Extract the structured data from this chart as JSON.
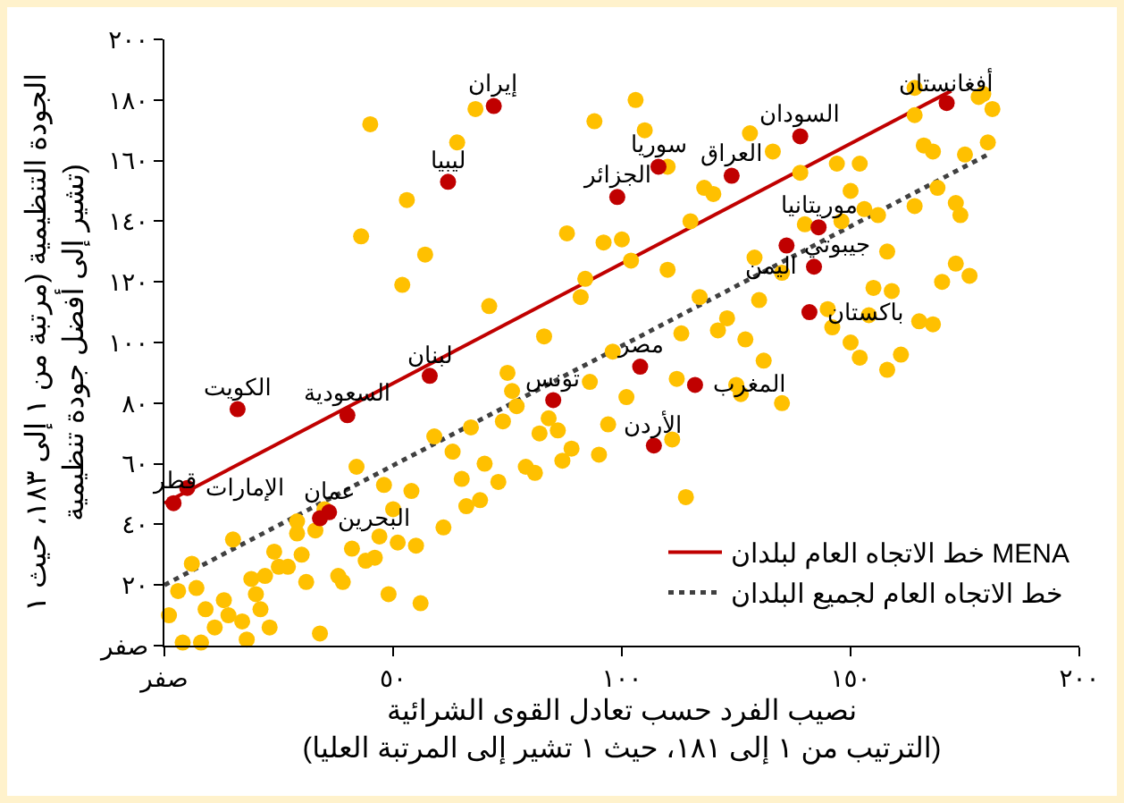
{
  "chart_data": {
    "type": "scatter",
    "xlabel": "نصيب الفرد حسب تعادل القوى الشرائية\n(الترتيب من ١ إلى ١٨١، حيث ١ تشير إلى المرتبة العليا)",
    "ylabel": "الجودة التنظيمية (مرتبة من ١ إلى ١٨٣، حيث ١\nتشير إلى أفضل جودة تنظيمية)",
    "xlim": [
      0,
      200
    ],
    "ylim": [
      0,
      200
    ],
    "xticks": [
      {
        "value": 0,
        "label": "صفر"
      },
      {
        "value": 50,
        "label": "٥٠"
      },
      {
        "value": 100,
        "label": "١٠٠"
      },
      {
        "value": 150,
        "label": "١٥٠"
      },
      {
        "value": 200,
        "label": "٢٠٠"
      }
    ],
    "yticks": [
      {
        "value": 0,
        "label": "صفر"
      },
      {
        "value": 20,
        "label": "٢٠"
      },
      {
        "value": 40,
        "label": "٤٠"
      },
      {
        "value": 60,
        "label": "٦٠"
      },
      {
        "value": 80,
        "label": "٨٠"
      },
      {
        "value": 100,
        "label": "١٠٠"
      },
      {
        "value": 120,
        "label": "١٢٠"
      },
      {
        "value": 140,
        "label": "١٤٠"
      },
      {
        "value": 160,
        "label": "١٦٠"
      },
      {
        "value": 180,
        "label": "١٨٠"
      },
      {
        "value": 200,
        "label": "٢٠٠"
      }
    ],
    "grid": false,
    "legend": "bottom right",
    "marker": "circle",
    "series": [
      {
        "type": "scatter",
        "color": "#ffc000",
        "x": [
          45,
          68,
          64,
          53,
          43,
          57,
          52,
          71,
          83,
          75,
          76,
          77,
          103,
          94,
          105,
          110,
          133,
          128,
          118,
          120,
          139,
          147,
          152,
          150,
          115,
          88,
          96,
          100,
          102,
          110,
          92,
          91,
          129,
          135,
          140,
          148,
          153,
          156,
          164,
          164,
          178,
          179,
          181,
          166,
          168,
          175,
          180,
          169,
          173,
          174,
          164,
          158,
          173,
          176,
          170,
          159,
          155,
          154,
          145,
          165,
          168,
          146,
          150,
          152,
          158,
          161,
          130,
          117,
          113,
          123,
          121,
          127,
          131,
          98,
          93,
          101,
          112,
          125,
          126,
          135,
          84,
          82,
          86,
          97,
          89,
          87,
          95,
          111,
          114,
          79,
          81,
          74,
          59,
          67,
          63,
          70,
          73,
          65,
          66,
          69,
          61,
          54,
          48,
          50,
          42,
          47,
          51,
          55,
          41,
          44,
          46,
          49,
          56,
          34,
          38,
          39,
          31,
          33,
          29,
          29,
          27,
          25,
          24,
          30,
          22,
          19,
          20,
          21,
          23,
          15,
          17,
          13,
          14,
          9,
          11,
          8,
          4,
          6,
          7,
          3,
          1,
          18,
          35
        ],
        "values": [
          172,
          177,
          166,
          147,
          135,
          129,
          119,
          112,
          102,
          90,
          84,
          79,
          180,
          173,
          170,
          158,
          163,
          169,
          151,
          149,
          156,
          159,
          159,
          150,
          140,
          136,
          133,
          134,
          127,
          124,
          121,
          115,
          128,
          123,
          139,
          140,
          144,
          142,
          184,
          175,
          181,
          182,
          177,
          165,
          163,
          162,
          166,
          151,
          146,
          142,
          145,
          130,
          126,
          122,
          120,
          117,
          118,
          109,
          111,
          107,
          106,
          105,
          100,
          95,
          91,
          96,
          114,
          115,
          103,
          108,
          104,
          101,
          94,
          97,
          87,
          82,
          88,
          86,
          83,
          80,
          75,
          70,
          71,
          73,
          65,
          61,
          63,
          68,
          49,
          59,
          57,
          74,
          69,
          72,
          64,
          60,
          54,
          55,
          46,
          48,
          39,
          51,
          53,
          45,
          59,
          36,
          34,
          33,
          32,
          28,
          29,
          17,
          14,
          4,
          23,
          21,
          21,
          38,
          41,
          37,
          26,
          26,
          31,
          30,
          23,
          22,
          17,
          12,
          6,
          35,
          8,
          15,
          10,
          12,
          6,
          1,
          1,
          27,
          19,
          18,
          10,
          2,
          45
        ]
      },
      {
        "type": "scatter",
        "color": "#c00000",
        "x": [
          72,
          62,
          58,
          40,
          16,
          2,
          5,
          34,
          36,
          99,
          108,
          124,
          139,
          171,
          143,
          136,
          142,
          141,
          85,
          104,
          116,
          107
        ],
        "values": [
          178,
          153,
          89,
          76,
          78,
          47,
          52,
          42,
          44,
          148,
          158,
          155,
          168,
          179,
          138,
          132,
          125,
          110,
          81,
          92,
          86,
          66
        ]
      },
      {
        "type": "line",
        "name": "خط الاتجاه العام لبلدان MENA",
        "color": "#c00000",
        "line_style": "solid",
        "marker": "none",
        "x": [
          0,
          172
        ],
        "values": [
          47,
          183
        ]
      },
      {
        "type": "line",
        "name": "خط الاتجاه العام لجميع البلدان",
        "color": "#404040",
        "line_style": "dotted",
        "marker": "none",
        "x": [
          0,
          180
        ],
        "values": [
          20,
          162
        ]
      }
    ],
    "annotations": [
      {
        "text": "إيران",
        "x": 72,
        "y": 178
      },
      {
        "text": "ليبيا",
        "x": 62,
        "y": 153
      },
      {
        "text": "لبنان",
        "x": 58,
        "y": 89
      },
      {
        "text": "السعودية",
        "x": 40,
        "y": 76
      },
      {
        "text": "الكويت",
        "x": 16,
        "y": 78
      },
      {
        "text": "قطر",
        "x": 2,
        "y": 47
      },
      {
        "text": "الإمارات",
        "x": 5,
        "y": 52
      },
      {
        "text": "البحرين",
        "x": 34,
        "y": 42
      },
      {
        "text": "عمان",
        "x": 36,
        "y": 44
      },
      {
        "text": "الجزائر",
        "x": 99,
        "y": 148
      },
      {
        "text": "سوريا",
        "x": 108,
        "y": 158
      },
      {
        "text": "العراق",
        "x": 124,
        "y": 155
      },
      {
        "text": "السودان",
        "x": 139,
        "y": 168
      },
      {
        "text": "أفغانستان",
        "x": 171,
        "y": 179
      },
      {
        "text": "موريتانيا",
        "x": 143,
        "y": 138
      },
      {
        "text": "جيبوتي",
        "x": 136,
        "y": 132
      },
      {
        "text": "اليمن",
        "x": 142,
        "y": 125
      },
      {
        "text": "باكستان",
        "x": 141,
        "y": 110
      },
      {
        "text": "تونس",
        "x": 85,
        "y": 81
      },
      {
        "text": "مصر",
        "x": 104,
        "y": 92
      },
      {
        "text": "المغرب",
        "x": 116,
        "y": 86
      },
      {
        "text": "الأردن",
        "x": 107,
        "y": 66
      }
    ]
  }
}
